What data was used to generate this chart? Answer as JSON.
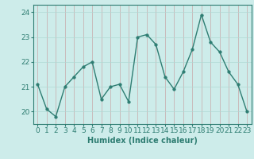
{
  "x": [
    0,
    1,
    2,
    3,
    4,
    5,
    6,
    7,
    8,
    9,
    10,
    11,
    12,
    13,
    14,
    15,
    16,
    17,
    18,
    19,
    20,
    21,
    22,
    23
  ],
  "y": [
    21.1,
    20.1,
    19.8,
    21.0,
    21.4,
    21.8,
    22.0,
    20.5,
    21.0,
    21.1,
    20.4,
    23.0,
    23.1,
    22.7,
    21.4,
    20.9,
    21.6,
    22.5,
    23.9,
    22.8,
    22.4,
    21.6,
    21.1,
    20.0
  ],
  "line_color": "#2e7d72",
  "marker": "o",
  "marker_size": 2.5,
  "bg_color": "#cdecea",
  "grid_color": "#b0d8d4",
  "xlabel": "Humidex (Indice chaleur)",
  "xlabel_fontsize": 7,
  "tick_fontsize": 6.5,
  "ylim": [
    19.5,
    24.3
  ],
  "yticks": [
    20,
    21,
    22,
    23,
    24
  ],
  "xticks": [
    0,
    1,
    2,
    3,
    4,
    5,
    6,
    7,
    8,
    9,
    10,
    11,
    12,
    13,
    14,
    15,
    16,
    17,
    18,
    19,
    20,
    21,
    22,
    23
  ],
  "line_width": 1.0,
  "spine_color": "#2e7d72",
  "grid_line_color_v": "#c8a8a8",
  "grid_line_color_h": "#b0d8d4"
}
